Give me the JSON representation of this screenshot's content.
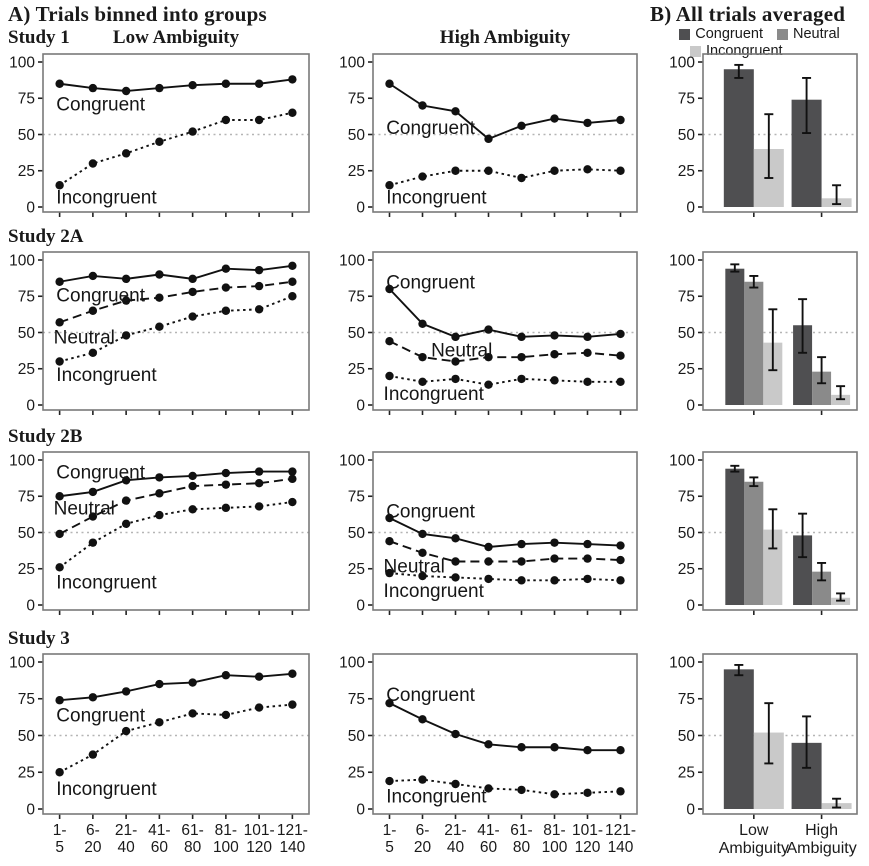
{
  "panel_a_title": "A) Trials binned into groups",
  "panel_b_title": "B) All trials averaged",
  "row_labels": [
    "Study 1",
    "Study 2A",
    "Study 2B",
    "Study 3"
  ],
  "col_headers": {
    "low": "Low Ambiguity",
    "high": "High Ambiguity"
  },
  "legend": {
    "items": [
      {
        "label": "Congruent",
        "color": "#4f4f51"
      },
      {
        "label": "Neutral",
        "color": "#8a8a8a"
      },
      {
        "label": "Incongruent",
        "color": "#c9c9c9"
      }
    ]
  },
  "colors": {
    "line": "#111111",
    "point": "#111111",
    "refline": "#b5b5b5",
    "axis_border": "#7a7a7a",
    "tick": "#222222",
    "congruent_bar": "#4f4f51",
    "neutral_bar": "#8a8a8a",
    "incongruent_bar": "#c9c9c9"
  },
  "bin_tick_lines": [
    [
      "1-",
      "5"
    ],
    [
      "6-",
      "20"
    ],
    [
      "21-",
      "40"
    ],
    [
      "41-",
      "60"
    ],
    [
      "61-",
      "80"
    ],
    [
      "81-",
      "100"
    ],
    [
      "101-",
      "120"
    ],
    [
      "121-",
      "140"
    ]
  ],
  "bar_tick_lines": [
    [
      "Low",
      "Ambiguity"
    ],
    [
      "High",
      "Ambiguity"
    ]
  ],
  "chart_data": [
    {
      "id": "s1_low",
      "type": "line",
      "study": "Study 1",
      "condition": "Low Ambiguity",
      "ylim": [
        0,
        100
      ],
      "yticks": [
        0,
        25,
        50,
        75,
        100
      ],
      "refline": 50,
      "categories": [
        "1-5",
        "6-20",
        "21-40",
        "41-60",
        "61-80",
        "81-100",
        "101-120",
        "121-140"
      ],
      "series": [
        {
          "name": "Congruent",
          "dash": "solid",
          "values": [
            85,
            82,
            80,
            82,
            84,
            85,
            85,
            88
          ]
        },
        {
          "name": "Incongruent",
          "dash": "dotted",
          "values": [
            15,
            30,
            37,
            45,
            52,
            60,
            60,
            65
          ]
        }
      ],
      "labels": [
        {
          "text": "Congruent",
          "fx": 0.05,
          "y": 71
        },
        {
          "text": "Incongruent",
          "fx": 0.05,
          "y": 7
        }
      ],
      "show_x_labels": false
    },
    {
      "id": "s1_high",
      "type": "line",
      "study": "Study 1",
      "condition": "High Ambiguity",
      "ylim": [
        0,
        100
      ],
      "yticks": [
        0,
        25,
        50,
        75,
        100
      ],
      "refline": 50,
      "categories": [
        "1-5",
        "6-20",
        "21-40",
        "41-60",
        "61-80",
        "81-100",
        "101-120",
        "121-140"
      ],
      "series": [
        {
          "name": "Congruent",
          "dash": "solid",
          "values": [
            85,
            70,
            66,
            47,
            56,
            61,
            58,
            60
          ]
        },
        {
          "name": "Incongruent",
          "dash": "dotted",
          "values": [
            15,
            21,
            25,
            25,
            20,
            25,
            26,
            25
          ]
        }
      ],
      "labels": [
        {
          "text": "Congruent",
          "fx": 0.05,
          "y": 55
        },
        {
          "text": "Incongruent",
          "fx": 0.05,
          "y": 7
        }
      ],
      "show_x_labels": false
    },
    {
      "id": "s1_bar",
      "type": "bar",
      "study": "Study 1",
      "ylim": [
        0,
        100
      ],
      "yticks": [
        0,
        25,
        50,
        75,
        100
      ],
      "refline": 50,
      "categories": [
        "Low Ambiguity",
        "High Ambiguity"
      ],
      "series": [
        {
          "name": "Congruent",
          "color": "#4f4f51",
          "values": [
            95,
            74
          ],
          "err_low": [
            89,
            51
          ],
          "err_high": [
            98,
            89
          ]
        },
        {
          "name": "Incongruent",
          "color": "#c9c9c9",
          "values": [
            40,
            6
          ],
          "err_low": [
            20,
            2
          ],
          "err_high": [
            64,
            15
          ]
        }
      ],
      "show_x_labels": false
    },
    {
      "id": "s2a_low",
      "type": "line",
      "study": "Study 2A",
      "condition": "Low Ambiguity",
      "ylim": [
        0,
        100
      ],
      "yticks": [
        0,
        25,
        50,
        75,
        100
      ],
      "refline": 50,
      "categories": [
        "1-5",
        "6-20",
        "21-40",
        "41-60",
        "61-80",
        "81-100",
        "101-120",
        "121-140"
      ],
      "series": [
        {
          "name": "Congruent",
          "dash": "solid",
          "values": [
            85,
            89,
            87,
            90,
            87,
            94,
            93,
            96
          ]
        },
        {
          "name": "Neutral",
          "dash": "dashed",
          "values": [
            57,
            65,
            72,
            74,
            78,
            81,
            82,
            85
          ]
        },
        {
          "name": "Incongruent",
          "dash": "dotted",
          "values": [
            30,
            36,
            48,
            54,
            61,
            65,
            66,
            75
          ]
        }
      ],
      "labels": [
        {
          "text": "Congruent",
          "fx": 0.05,
          "y": 76
        },
        {
          "text": "Neutral",
          "fx": 0.04,
          "y": 47
        },
        {
          "text": "Incongruent",
          "fx": 0.05,
          "y": 21
        }
      ],
      "show_x_labels": false
    },
    {
      "id": "s2a_high",
      "type": "line",
      "study": "Study 2A",
      "condition": "High Ambiguity",
      "ylim": [
        0,
        100
      ],
      "yticks": [
        0,
        25,
        50,
        75,
        100
      ],
      "refline": 50,
      "categories": [
        "1-5",
        "6-20",
        "21-40",
        "41-60",
        "61-80",
        "81-100",
        "101-120",
        "121-140"
      ],
      "series": [
        {
          "name": "Congruent",
          "dash": "solid",
          "values": [
            80,
            56,
            47,
            52,
            47,
            48,
            47,
            49
          ]
        },
        {
          "name": "Neutral",
          "dash": "dashed",
          "values": [
            44,
            33,
            30,
            33,
            33,
            35,
            36,
            34
          ]
        },
        {
          "name": "Incongruent",
          "dash": "dotted",
          "values": [
            20,
            16,
            18,
            14,
            18,
            17,
            16,
            16
          ]
        }
      ],
      "labels": [
        {
          "text": "Congruent",
          "fx": 0.05,
          "y": 85
        },
        {
          "text": "Neutral",
          "fx": 0.22,
          "y": 38
        },
        {
          "text": "Incongruent",
          "fx": 0.04,
          "y": 8
        }
      ],
      "show_x_labels": false
    },
    {
      "id": "s2a_bar",
      "type": "bar",
      "study": "Study 2A",
      "ylim": [
        0,
        100
      ],
      "yticks": [
        0,
        25,
        50,
        75,
        100
      ],
      "refline": 50,
      "categories": [
        "Low Ambiguity",
        "High Ambiguity"
      ],
      "series": [
        {
          "name": "Congruent",
          "color": "#4f4f51",
          "values": [
            94,
            55
          ],
          "err_low": [
            92,
            36
          ],
          "err_high": [
            97,
            73
          ]
        },
        {
          "name": "Neutral",
          "color": "#8a8a8a",
          "values": [
            85,
            23
          ],
          "err_low": [
            81,
            15
          ],
          "err_high": [
            89,
            33
          ]
        },
        {
          "name": "Incongruent",
          "color": "#c9c9c9",
          "values": [
            43,
            7
          ],
          "err_low": [
            24,
            4
          ],
          "err_high": [
            66,
            13
          ]
        }
      ],
      "show_x_labels": false
    },
    {
      "id": "s2b_low",
      "type": "line",
      "study": "Study 2B",
      "condition": "Low Ambiguity",
      "ylim": [
        0,
        100
      ],
      "yticks": [
        0,
        25,
        50,
        75,
        100
      ],
      "refline": 50,
      "categories": [
        "1-5",
        "6-20",
        "21-40",
        "41-60",
        "61-80",
        "81-100",
        "101-120",
        "121-140"
      ],
      "series": [
        {
          "name": "Congruent",
          "dash": "solid",
          "values": [
            75,
            78,
            86,
            88,
            89,
            91,
            92,
            92
          ]
        },
        {
          "name": "Neutral",
          "dash": "dashed",
          "values": [
            49,
            61,
            72,
            77,
            82,
            83,
            84,
            87
          ]
        },
        {
          "name": "Incongruent",
          "dash": "dotted",
          "values": [
            26,
            43,
            56,
            62,
            66,
            67,
            68,
            71
          ]
        }
      ],
      "labels": [
        {
          "text": "Congruent",
          "fx": 0.05,
          "y": 92
        },
        {
          "text": "Neutral",
          "fx": 0.04,
          "y": 67
        },
        {
          "text": "Incongruent",
          "fx": 0.05,
          "y": 16
        }
      ],
      "show_x_labels": false
    },
    {
      "id": "s2b_high",
      "type": "line",
      "study": "Study 2B",
      "condition": "High Ambiguity",
      "ylim": [
        0,
        100
      ],
      "yticks": [
        0,
        25,
        50,
        75,
        100
      ],
      "refline": 50,
      "categories": [
        "1-5",
        "6-20",
        "21-40",
        "41-60",
        "61-80",
        "81-100",
        "101-120",
        "121-140"
      ],
      "series": [
        {
          "name": "Congruent",
          "dash": "solid",
          "values": [
            60,
            49,
            46,
            40,
            42,
            43,
            42,
            41
          ]
        },
        {
          "name": "Neutral",
          "dash": "dashed",
          "values": [
            44,
            36,
            30,
            30,
            30,
            32,
            32,
            31
          ]
        },
        {
          "name": "Incongruent",
          "dash": "dotted",
          "values": [
            22,
            20,
            19,
            18,
            17,
            17,
            18,
            17
          ]
        }
      ],
      "labels": [
        {
          "text": "Congruent",
          "fx": 0.05,
          "y": 65
        },
        {
          "text": "Neutral",
          "fx": 0.04,
          "y": 27
        },
        {
          "text": "Incongruent",
          "fx": 0.04,
          "y": 10
        }
      ],
      "show_x_labels": false
    },
    {
      "id": "s2b_bar",
      "type": "bar",
      "study": "Study 2B",
      "ylim": [
        0,
        100
      ],
      "yticks": [
        0,
        25,
        50,
        75,
        100
      ],
      "refline": 50,
      "categories": [
        "Low Ambiguity",
        "High Ambiguity"
      ],
      "series": [
        {
          "name": "Congruent",
          "color": "#4f4f51",
          "values": [
            94,
            48
          ],
          "err_low": [
            92,
            33
          ],
          "err_high": [
            96,
            63
          ]
        },
        {
          "name": "Neutral",
          "color": "#8a8a8a",
          "values": [
            85,
            23
          ],
          "err_low": [
            82,
            17
          ],
          "err_high": [
            88,
            29
          ]
        },
        {
          "name": "Incongruent",
          "color": "#c9c9c9",
          "values": [
            52,
            5
          ],
          "err_low": [
            39,
            3
          ],
          "err_high": [
            66,
            8
          ]
        }
      ],
      "show_x_labels": false
    },
    {
      "id": "s3_low",
      "type": "line",
      "study": "Study 3",
      "condition": "Low Ambiguity",
      "ylim": [
        0,
        100
      ],
      "yticks": [
        0,
        25,
        50,
        75,
        100
      ],
      "refline": 50,
      "categories": [
        "1-5",
        "6-20",
        "21-40",
        "41-60",
        "61-80",
        "81-100",
        "101-120",
        "121-140"
      ],
      "series": [
        {
          "name": "Congruent",
          "dash": "solid",
          "values": [
            74,
            76,
            80,
            85,
            86,
            91,
            90,
            92
          ]
        },
        {
          "name": "Incongruent",
          "dash": "dotted",
          "values": [
            25,
            37,
            53,
            59,
            65,
            64,
            69,
            71
          ]
        }
      ],
      "labels": [
        {
          "text": "Congruent",
          "fx": 0.05,
          "y": 64
        },
        {
          "text": "Incongruent",
          "fx": 0.05,
          "y": 14
        }
      ],
      "show_x_labels": true
    },
    {
      "id": "s3_high",
      "type": "line",
      "study": "Study 3",
      "condition": "High Ambiguity",
      "ylim": [
        0,
        100
      ],
      "yticks": [
        0,
        25,
        50,
        75,
        100
      ],
      "refline": 50,
      "categories": [
        "1-5",
        "6-20",
        "21-40",
        "41-60",
        "61-80",
        "81-100",
        "101-120",
        "121-140"
      ],
      "series": [
        {
          "name": "Congruent",
          "dash": "solid",
          "values": [
            72,
            61,
            51,
            44,
            42,
            42,
            40,
            40
          ]
        },
        {
          "name": "Incongruent",
          "dash": "dotted",
          "values": [
            19,
            20,
            17,
            14,
            13,
            10,
            11,
            12
          ]
        }
      ],
      "labels": [
        {
          "text": "Congruent",
          "fx": 0.05,
          "y": 78
        },
        {
          "text": "Incongruent",
          "fx": 0.05,
          "y": 9
        }
      ],
      "show_x_labels": true
    },
    {
      "id": "s3_bar",
      "type": "bar",
      "study": "Study 3",
      "ylim": [
        0,
        100
      ],
      "yticks": [
        0,
        25,
        50,
        75,
        100
      ],
      "refline": 50,
      "categories": [
        "Low Ambiguity",
        "High Ambiguity"
      ],
      "series": [
        {
          "name": "Congruent",
          "color": "#4f4f51",
          "values": [
            95,
            45
          ],
          "err_low": [
            91,
            28
          ],
          "err_high": [
            98,
            63
          ]
        },
        {
          "name": "Incongruent",
          "color": "#c9c9c9",
          "values": [
            52,
            4
          ],
          "err_low": [
            31,
            1
          ],
          "err_high": [
            72,
            7
          ]
        }
      ],
      "show_x_labels": true
    }
  ]
}
